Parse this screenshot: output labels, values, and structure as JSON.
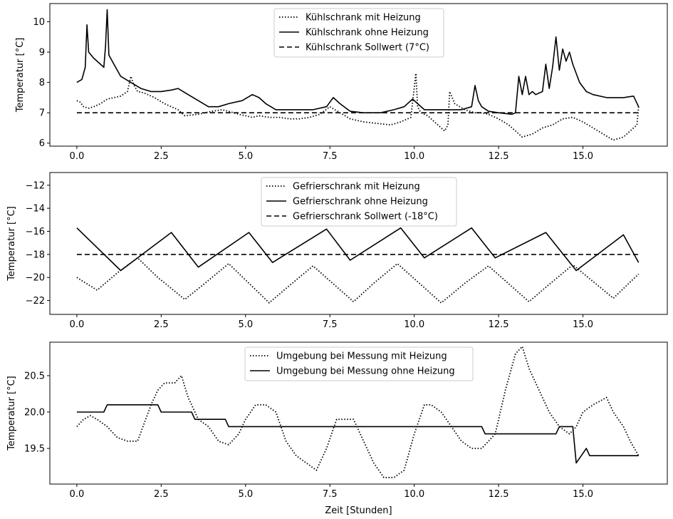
{
  "chart_data": [
    {
      "type": "line",
      "title": "",
      "xlabel": "",
      "ylabel": "Temperatur [°C]",
      "xlim": [
        -0.8,
        17.5
      ],
      "ylim": [
        5.9,
        10.6
      ],
      "xticks": [
        0.0,
        2.5,
        5.0,
        7.5,
        10.0,
        12.5,
        15.0
      ],
      "xtick_labels": [
        "0.0",
        "2.5",
        "5.0",
        "7.5",
        "10.0",
        "12.5",
        "15.0"
      ],
      "yticks": [
        6,
        7,
        8,
        9,
        10
      ],
      "ytick_labels": [
        "6",
        "7",
        "8",
        "9",
        "10"
      ],
      "legend_position": "top-center",
      "series": [
        {
          "name": "Kühlschrank mit Heizung",
          "style": "dotted",
          "x": [
            0.0,
            0.1,
            0.2,
            0.35,
            0.5,
            0.7,
            0.9,
            1.1,
            1.3,
            1.5,
            1.6,
            1.7,
            1.8,
            2.0,
            2.3,
            2.6,
            2.8,
            3.0,
            3.2,
            3.6,
            4.0,
            4.3,
            4.5,
            4.8,
            5.0,
            5.2,
            5.4,
            5.7,
            6.0,
            6.3,
            6.6,
            6.9,
            7.2,
            7.5,
            7.8,
            8.1,
            8.5,
            8.9,
            9.3,
            9.6,
            9.9,
            10.05,
            10.1,
            10.2,
            10.4,
            10.6,
            10.8,
            10.9,
            11.0,
            11.05,
            11.2,
            11.5,
            11.8,
            12.0,
            12.2,
            12.5,
            12.8,
            13.0,
            13.2,
            13.5,
            13.8,
            14.1,
            14.4,
            14.7,
            15.0,
            15.3,
            15.6,
            15.9,
            16.2,
            16.4,
            16.6,
            16.65
          ],
          "y": [
            7.4,
            7.35,
            7.2,
            7.15,
            7.2,
            7.3,
            7.45,
            7.5,
            7.55,
            7.7,
            8.2,
            7.9,
            7.7,
            7.65,
            7.5,
            7.3,
            7.2,
            7.1,
            6.9,
            6.95,
            7.05,
            7.1,
            7.05,
            6.95,
            6.9,
            6.85,
            6.9,
            6.85,
            6.85,
            6.8,
            6.8,
            6.85,
            6.95,
            7.2,
            7.0,
            6.8,
            6.7,
            6.65,
            6.6,
            6.7,
            6.85,
            8.3,
            7.2,
            7.0,
            6.9,
            6.7,
            6.5,
            6.4,
            6.6,
            7.7,
            7.3,
            7.1,
            7.0,
            7.0,
            6.95,
            6.8,
            6.6,
            6.4,
            6.2,
            6.3,
            6.5,
            6.6,
            6.8,
            6.85,
            6.7,
            6.5,
            6.3,
            6.1,
            6.2,
            6.4,
            6.6,
            7.2
          ]
        },
        {
          "name": "Kühlschrank ohne Heizung",
          "style": "solid",
          "x": [
            0.0,
            0.15,
            0.25,
            0.3,
            0.35,
            0.5,
            0.7,
            0.8,
            0.85,
            0.9,
            0.95,
            1.1,
            1.3,
            1.6,
            1.9,
            2.2,
            2.5,
            2.8,
            3.0,
            3.3,
            3.6,
            3.9,
            4.2,
            4.5,
            4.9,
            5.2,
            5.4,
            5.6,
            5.9,
            6.2,
            6.6,
            7.0,
            7.4,
            7.6,
            7.8,
            8.1,
            8.5,
            9.0,
            9.4,
            9.7,
            9.95,
            10.1,
            10.3,
            10.6,
            11.0,
            11.4,
            11.7,
            11.8,
            11.9,
            12.0,
            12.2,
            12.5,
            12.9,
            13.0,
            13.1,
            13.2,
            13.3,
            13.4,
            13.5,
            13.6,
            13.8,
            13.9,
            14.0,
            14.1,
            14.2,
            14.3,
            14.4,
            14.5,
            14.6,
            14.7,
            14.9,
            15.1,
            15.3,
            15.7,
            16.2,
            16.5,
            16.65
          ],
          "y": [
            8.0,
            8.1,
            8.5,
            9.9,
            9.0,
            8.8,
            8.6,
            8.5,
            9.2,
            10.4,
            8.9,
            8.6,
            8.2,
            8.0,
            7.8,
            7.7,
            7.7,
            7.75,
            7.8,
            7.6,
            7.4,
            7.2,
            7.2,
            7.3,
            7.4,
            7.6,
            7.5,
            7.3,
            7.1,
            7.1,
            7.1,
            7.1,
            7.2,
            7.5,
            7.3,
            7.05,
            7.0,
            7.0,
            7.1,
            7.2,
            7.45,
            7.3,
            7.1,
            7.1,
            7.1,
            7.1,
            7.2,
            7.9,
            7.4,
            7.2,
            7.05,
            7.0,
            6.95,
            7.0,
            8.2,
            7.6,
            8.2,
            7.6,
            7.7,
            7.6,
            7.7,
            8.6,
            7.8,
            8.5,
            9.5,
            8.4,
            9.1,
            8.7,
            9.0,
            8.6,
            8.0,
            7.7,
            7.6,
            7.5,
            7.5,
            7.55,
            7.2
          ]
        },
        {
          "name": "Kühlschrank Sollwert (7°C)",
          "style": "dashed",
          "x": [
            0.0,
            16.65
          ],
          "y": [
            7.0,
            7.0
          ]
        }
      ]
    },
    {
      "type": "line",
      "title": "",
      "xlabel": "",
      "ylabel": "Temperatur [°C]",
      "xlim": [
        -0.8,
        17.5
      ],
      "ylim": [
        -23.2,
        -10.9
      ],
      "xticks": [
        0.0,
        2.5,
        5.0,
        7.5,
        10.0,
        12.5,
        15.0
      ],
      "xtick_labels": [
        "0.0",
        "2.5",
        "5.0",
        "7.5",
        "10.0",
        "12.5",
        "15.0"
      ],
      "yticks": [
        -22,
        -20,
        -18,
        -16,
        -14,
        -12
      ],
      "ytick_labels": [
        "−22",
        "−20",
        "−18",
        "−16",
        "−14",
        "−12"
      ],
      "legend_position": "top-center",
      "series": [
        {
          "name": "Gefrierschrank mit Heizung",
          "style": "dotted",
          "x": [
            0.0,
            0.6,
            1.2,
            1.8,
            2.4,
            3.2,
            3.8,
            4.5,
            5.7,
            6.3,
            7.0,
            8.2,
            8.8,
            9.5,
            10.8,
            11.5,
            12.2,
            13.4,
            14.0,
            14.7,
            15.9,
            16.65
          ],
          "y": [
            -20.0,
            -21.1,
            -19.6,
            -18.3,
            -20.0,
            -21.9,
            -20.5,
            -18.8,
            -22.2,
            -20.7,
            -19.0,
            -22.1,
            -20.5,
            -18.8,
            -22.2,
            -20.5,
            -19.0,
            -22.1,
            -20.6,
            -18.9,
            -21.8,
            -19.7
          ],
          "note_x": [
            0.0,
            0.6,
            1.8,
            3.2,
            4.6,
            5.7,
            7.0,
            8.2,
            9.6,
            10.8,
            12.2,
            13.4,
            14.7,
            15.9,
            16.65
          ]
        },
        {
          "name": "Gefrierschrank ohne Heizung",
          "style": "solid",
          "x": [
            0.0,
            1.3,
            2.8,
            3.6,
            5.1,
            5.8,
            7.4,
            8.1,
            9.6,
            10.3,
            11.7,
            12.4,
            13.9,
            14.8,
            16.2,
            16.65
          ],
          "y": [
            -15.7,
            -19.4,
            -16.1,
            -19.1,
            -16.1,
            -18.7,
            -15.8,
            -18.5,
            -15.7,
            -18.3,
            -15.7,
            -18.3,
            -16.1,
            -19.4,
            -16.3,
            -18.7
          ]
        },
        {
          "name": "Gefrierschrank Sollwert (-18°C)",
          "style": "dashed",
          "x": [
            0.0,
            16.65
          ],
          "y": [
            -18.0,
            -18.0
          ]
        }
      ]
    },
    {
      "type": "line",
      "title": "",
      "xlabel": "Zeit [Stunden]",
      "ylabel": "Temperatur [°C]",
      "xlim": [
        -0.8,
        17.5
      ],
      "ylim": [
        19.01,
        20.96
      ],
      "xticks": [
        0.0,
        2.5,
        5.0,
        7.5,
        10.0,
        12.5,
        15.0
      ],
      "xtick_labels": [
        "0.0",
        "2.5",
        "5.0",
        "7.5",
        "10.0",
        "12.5",
        "15.0"
      ],
      "yticks": [
        19.5,
        20.0,
        20.5
      ],
      "ytick_labels": [
        "19.5",
        "20.0",
        "20.5"
      ],
      "legend_position": "top-center",
      "series": [
        {
          "name": "Umgebung bei Messung mit Heizung",
          "style": "dotted",
          "x": [
            0.0,
            0.2,
            0.4,
            0.6,
            0.9,
            1.2,
            1.5,
            1.8,
            2.0,
            2.2,
            2.4,
            2.6,
            2.9,
            3.1,
            3.3,
            3.6,
            3.9,
            4.2,
            4.5,
            4.8,
            5.0,
            5.3,
            5.6,
            5.9,
            6.2,
            6.5,
            6.8,
            7.1,
            7.4,
            7.7,
            8.2,
            8.5,
            8.8,
            9.1,
            9.4,
            9.7,
            10.0,
            10.3,
            10.5,
            10.8,
            11.1,
            11.4,
            11.7,
            12.0,
            12.4,
            12.7,
            13.0,
            13.2,
            13.4,
            13.7,
            14.0,
            14.3,
            14.6,
            14.8,
            15.0,
            15.3,
            15.7,
            15.9,
            16.2,
            16.4,
            16.65
          ],
          "y": [
            19.8,
            19.9,
            19.95,
            19.9,
            19.8,
            19.65,
            19.6,
            19.6,
            19.85,
            20.1,
            20.3,
            20.4,
            20.4,
            20.5,
            20.2,
            19.9,
            19.8,
            19.6,
            19.55,
            19.7,
            19.9,
            20.1,
            20.1,
            20.0,
            19.6,
            19.4,
            19.3,
            19.2,
            19.5,
            19.9,
            19.9,
            19.6,
            19.3,
            19.1,
            19.1,
            19.2,
            19.7,
            20.1,
            20.1,
            20.0,
            19.8,
            19.6,
            19.5,
            19.5,
            19.7,
            20.3,
            20.8,
            20.9,
            20.6,
            20.3,
            20.0,
            19.8,
            19.7,
            19.8,
            20.0,
            20.1,
            20.2,
            20.0,
            19.8,
            19.6,
            19.4
          ]
        },
        {
          "name": "Umgebung bei Messung ohne Heizung",
          "style": "solid",
          "x": [
            0.0,
            0.8,
            0.9,
            2.4,
            2.5,
            3.4,
            3.5,
            4.4,
            4.5,
            5.0,
            5.1,
            7.6,
            7.7,
            11.0,
            11.1,
            12.0,
            12.1,
            14.2,
            14.3,
            14.7,
            14.8,
            15.1,
            15.2,
            16.65
          ],
          "y": [
            20.0,
            20.0,
            20.1,
            20.1,
            20.0,
            20.0,
            19.9,
            19.9,
            19.8,
            19.8,
            19.8,
            19.8,
            19.8,
            19.8,
            19.8,
            19.8,
            19.7,
            19.7,
            19.8,
            19.8,
            19.3,
            19.5,
            19.4,
            19.4
          ]
        }
      ]
    }
  ]
}
